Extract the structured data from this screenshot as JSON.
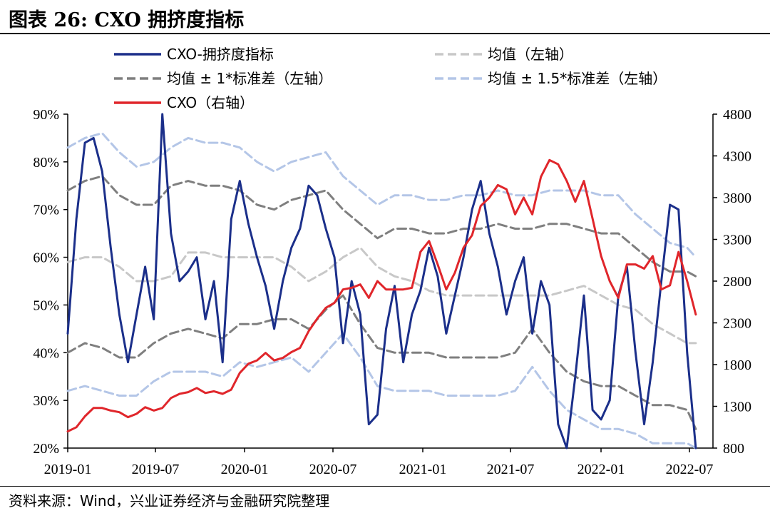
{
  "title": "图表 26:  CXO 拥挤度指标",
  "source": "资料来源：Wind，兴业证券经济与金融研究院整理",
  "colors": {
    "crowding": "#1b2f8a",
    "mean": "#c8c8c8",
    "band1": "#7f7f7f",
    "band15": "#b4c6e7",
    "cxo": "#e0262b"
  },
  "chart_data": {
    "type": "line",
    "title": "",
    "xlabel": "",
    "ylabel": "",
    "x_ticks": [
      "2019-01",
      "2019-07",
      "2020-01",
      "2020-07",
      "2021-01",
      "2021-07",
      "2022-01",
      "2022-07"
    ],
    "y_left": {
      "ticks": [
        "20%",
        "30%",
        "40%",
        "50%",
        "60%",
        "70%",
        "80%",
        "90%"
      ],
      "range": [
        20,
        90
      ],
      "unit": "%"
    },
    "y_right": {
      "ticks": [
        "800",
        "1300",
        "1800",
        "2300",
        "2800",
        "3300",
        "3800",
        "4300",
        "4800"
      ],
      "range": [
        800,
        4800
      ]
    },
    "legend_position": "top",
    "legend": [
      "CXO-拥挤度指标",
      "均值（左轴）",
      "均值 ± 1*标准差（左轴）",
      "均值 ± 1.5*标准差（左轴）",
      "CXO（右轴）"
    ],
    "series": [
      {
        "name": "CXO-拥挤度指标",
        "axis": "left",
        "style": "solid",
        "x": [
          2019.0,
          2019.05,
          2019.1,
          2019.15,
          2019.2,
          2019.25,
          2019.3,
          2019.35,
          2019.4,
          2019.45,
          2019.5,
          2019.55,
          2019.6,
          2019.65,
          2019.7,
          2019.75,
          2019.8,
          2019.85,
          2019.9,
          2019.95,
          2020.0,
          2020.05,
          2020.1,
          2020.15,
          2020.2,
          2020.25,
          2020.3,
          2020.35,
          2020.4,
          2020.45,
          2020.5,
          2020.55,
          2020.6,
          2020.65,
          2020.7,
          2020.75,
          2020.8,
          2020.85,
          2020.9,
          2020.95,
          2021.0,
          2021.05,
          2021.1,
          2021.15,
          2021.2,
          2021.25,
          2021.3,
          2021.35,
          2021.4,
          2021.45,
          2021.5,
          2021.55,
          2021.6,
          2021.65,
          2021.7,
          2021.75,
          2021.8,
          2021.85,
          2021.9,
          2021.95,
          2022.0,
          2022.05,
          2022.1,
          2022.15,
          2022.2,
          2022.25,
          2022.3,
          2022.35,
          2022.4,
          2022.45,
          2022.5,
          2022.55,
          2022.6,
          2022.65
        ],
        "values": [
          44,
          68,
          84,
          85,
          78,
          62,
          48,
          38,
          48,
          58,
          47,
          90,
          65,
          55,
          57,
          60,
          47,
          55,
          38,
          68,
          76,
          67,
          60,
          54,
          45,
          55,
          62,
          66,
          75,
          73,
          66,
          60,
          42,
          55,
          48,
          25,
          27,
          45,
          54,
          38,
          48,
          53,
          62,
          56,
          44,
          52,
          60,
          70,
          76,
          65,
          58,
          48,
          55,
          60,
          44,
          55,
          50,
          25,
          20,
          35,
          52,
          28,
          26,
          30,
          52,
          58,
          40,
          25,
          38,
          55,
          71,
          70,
          40,
          20
        ],
        "note": "approximate trace"
      },
      {
        "name": "均值（左轴）",
        "axis": "left",
        "style": "dashed",
        "x": [
          2019.0,
          2019.1,
          2019.2,
          2019.3,
          2019.4,
          2019.5,
          2019.6,
          2019.7,
          2019.8,
          2019.9,
          2020.0,
          2020.1,
          2020.2,
          2020.3,
          2020.4,
          2020.5,
          2020.6,
          2020.7,
          2020.8,
          2020.9,
          2021.0,
          2021.1,
          2021.2,
          2021.3,
          2021.4,
          2021.5,
          2021.6,
          2021.7,
          2021.8,
          2021.9,
          2022.0,
          2022.1,
          2022.2,
          2022.3,
          2022.4,
          2022.5,
          2022.6,
          2022.65
        ],
        "values": [
          59,
          60,
          60,
          58,
          55,
          55,
          56,
          61,
          61,
          60,
          60,
          60,
          60,
          58,
          55,
          57,
          60,
          62,
          58,
          56,
          55,
          53,
          52,
          52,
          52,
          52,
          52,
          52,
          52,
          53,
          54,
          52,
          50,
          49,
          46,
          44,
          42,
          42
        ]
      },
      {
        "name": "均值 ± 1*标准差（左轴）",
        "axis": "left",
        "style": "dashed",
        "x": [
          2019.0,
          2019.1,
          2019.2,
          2019.3,
          2019.4,
          2019.5,
          2019.6,
          2019.7,
          2019.8,
          2019.9,
          2020.0,
          2020.1,
          2020.2,
          2020.3,
          2020.4,
          2020.5,
          2020.6,
          2020.7,
          2020.8,
          2020.9,
          2021.0,
          2021.1,
          2021.2,
          2021.3,
          2021.4,
          2021.5,
          2021.6,
          2021.7,
          2021.8,
          2021.9,
          2022.0,
          2022.1,
          2022.2,
          2022.3,
          2022.4,
          2022.5,
          2022.6,
          2022.65
        ],
        "values": [
          74,
          76,
          77,
          73,
          71,
          71,
          75,
          76,
          75,
          75,
          74,
          71,
          70,
          72,
          73,
          74,
          70,
          67,
          64,
          66,
          66,
          65,
          65,
          66,
          66,
          67,
          66,
          66,
          67,
          67,
          66,
          65,
          65,
          62,
          59,
          57,
          57,
          56
        ],
        "lower": [
          40,
          42,
          41,
          39,
          39,
          42,
          44,
          45,
          44,
          43,
          46,
          46,
          47,
          47,
          45,
          49,
          52,
          46,
          41,
          40,
          40,
          40,
          39,
          39,
          39,
          39,
          40,
          45,
          40,
          36,
          34,
          33,
          33,
          31,
          29,
          29,
          28,
          24
        ]
      },
      {
        "name": "均值 ± 1.5*标准差（左轴）",
        "axis": "left",
        "style": "dashed",
        "x": [
          2019.0,
          2019.1,
          2019.2,
          2019.3,
          2019.4,
          2019.5,
          2019.6,
          2019.7,
          2019.8,
          2019.9,
          2020.0,
          2020.1,
          2020.2,
          2020.3,
          2020.4,
          2020.5,
          2020.6,
          2020.7,
          2020.8,
          2020.9,
          2021.0,
          2021.1,
          2021.2,
          2021.3,
          2021.4,
          2021.5,
          2021.6,
          2021.7,
          2021.8,
          2021.9,
          2022.0,
          2022.1,
          2022.2,
          2022.3,
          2022.4,
          2022.5,
          2022.6,
          2022.65
        ],
        "values": [
          83,
          85,
          86,
          82,
          79,
          80,
          83,
          85,
          84,
          84,
          83,
          80,
          78,
          80,
          81,
          82,
          77,
          74,
          71,
          73,
          73,
          72,
          72,
          73,
          73,
          74,
          73,
          73,
          74,
          74,
          74,
          73,
          73,
          69,
          66,
          63,
          62,
          60
        ],
        "lower": [
          32,
          33,
          32,
          31,
          31,
          34,
          36,
          36,
          36,
          35,
          38,
          37,
          38,
          39,
          36,
          40,
          44,
          39,
          33,
          32,
          32,
          32,
          31,
          31,
          31,
          31,
          32,
          37,
          32,
          28,
          26,
          24,
          24,
          23,
          21,
          21,
          21,
          20
        ]
      },
      {
        "name": "CXO（右轴）",
        "axis": "right",
        "style": "solid",
        "x": [
          2019.0,
          2019.05,
          2019.1,
          2019.15,
          2019.2,
          2019.25,
          2019.3,
          2019.35,
          2019.4,
          2019.45,
          2019.5,
          2019.55,
          2019.6,
          2019.65,
          2019.7,
          2019.75,
          2019.8,
          2019.85,
          2019.9,
          2019.95,
          2020.0,
          2020.05,
          2020.1,
          2020.15,
          2020.2,
          2020.25,
          2020.3,
          2020.35,
          2020.4,
          2020.45,
          2020.5,
          2020.55,
          2020.6,
          2020.65,
          2020.7,
          2020.75,
          2020.8,
          2020.85,
          2020.9,
          2020.95,
          2021.0,
          2021.05,
          2021.1,
          2021.15,
          2021.2,
          2021.25,
          2021.3,
          2021.35,
          2021.4,
          2021.45,
          2021.5,
          2021.55,
          2021.6,
          2021.65,
          2021.7,
          2021.75,
          2021.8,
          2021.85,
          2021.9,
          2021.95,
          2022.0,
          2022.05,
          2022.1,
          2022.15,
          2022.2,
          2022.25,
          2022.3,
          2022.35,
          2022.4,
          2022.45,
          2022.5,
          2022.55,
          2022.6,
          2022.65
        ],
        "values": [
          1000,
          1050,
          1180,
          1280,
          1280,
          1250,
          1230,
          1170,
          1210,
          1290,
          1250,
          1280,
          1400,
          1450,
          1470,
          1520,
          1460,
          1480,
          1450,
          1500,
          1700,
          1810,
          1850,
          1940,
          1850,
          1880,
          1950,
          2000,
          2200,
          2350,
          2480,
          2540,
          2700,
          2720,
          2760,
          2600,
          2800,
          2700,
          2700,
          2700,
          2720,
          3150,
          3280,
          3000,
          2700,
          2900,
          3200,
          3350,
          3700,
          3800,
          3950,
          3900,
          3600,
          3800,
          3600,
          4050,
          4250,
          4200,
          4000,
          3750,
          4000,
          3550,
          3100,
          2800,
          2600,
          3000,
          3000,
          2950,
          3100,
          2700,
          2750,
          3150,
          2800,
          2400
        ]
      }
    ]
  }
}
